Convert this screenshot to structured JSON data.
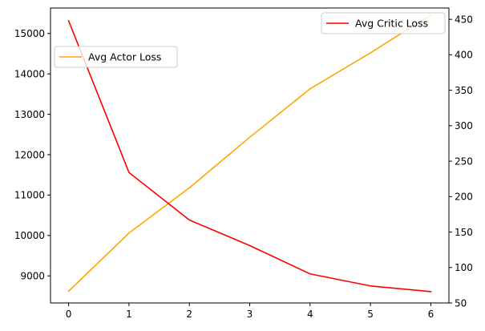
{
  "chart_data": {
    "type": "line",
    "x": [
      0,
      1,
      2,
      3,
      4,
      5,
      6
    ],
    "xlim": [
      -0.3,
      6.3
    ],
    "x_ticks": [
      "0",
      "1",
      "2",
      "3",
      "4",
      "5",
      "6"
    ],
    "left_axis": {
      "ylim": [
        8330,
        15630
      ],
      "ticks": [
        "9000",
        "10000",
        "11000",
        "12000",
        "13000",
        "14000",
        "15000"
      ]
    },
    "right_axis": {
      "ylim": [
        50,
        466
      ],
      "ticks": [
        "50",
        "100",
        "150",
        "200",
        "250",
        "300",
        "350",
        "400",
        "450"
      ]
    },
    "series": [
      {
        "name": "Avg Actor Loss",
        "axis": "left",
        "color": "#ffa500",
        "values": [
          8620,
          10060,
          11180,
          12430,
          13630,
          14520,
          15460
        ]
      },
      {
        "name": "Avg Critic Loss",
        "axis": "right",
        "color": "#ff0000",
        "values": [
          448,
          234,
          167,
          131,
          91,
          74,
          66
        ]
      }
    ],
    "legends": {
      "left": {
        "placement": "upper-left",
        "entries": [
          "Avg Actor Loss"
        ]
      },
      "right": {
        "placement": "upper-right",
        "entries": [
          "Avg Critic Loss"
        ]
      }
    },
    "grid": false,
    "title": "",
    "xlabel": "",
    "ylabel": ""
  }
}
